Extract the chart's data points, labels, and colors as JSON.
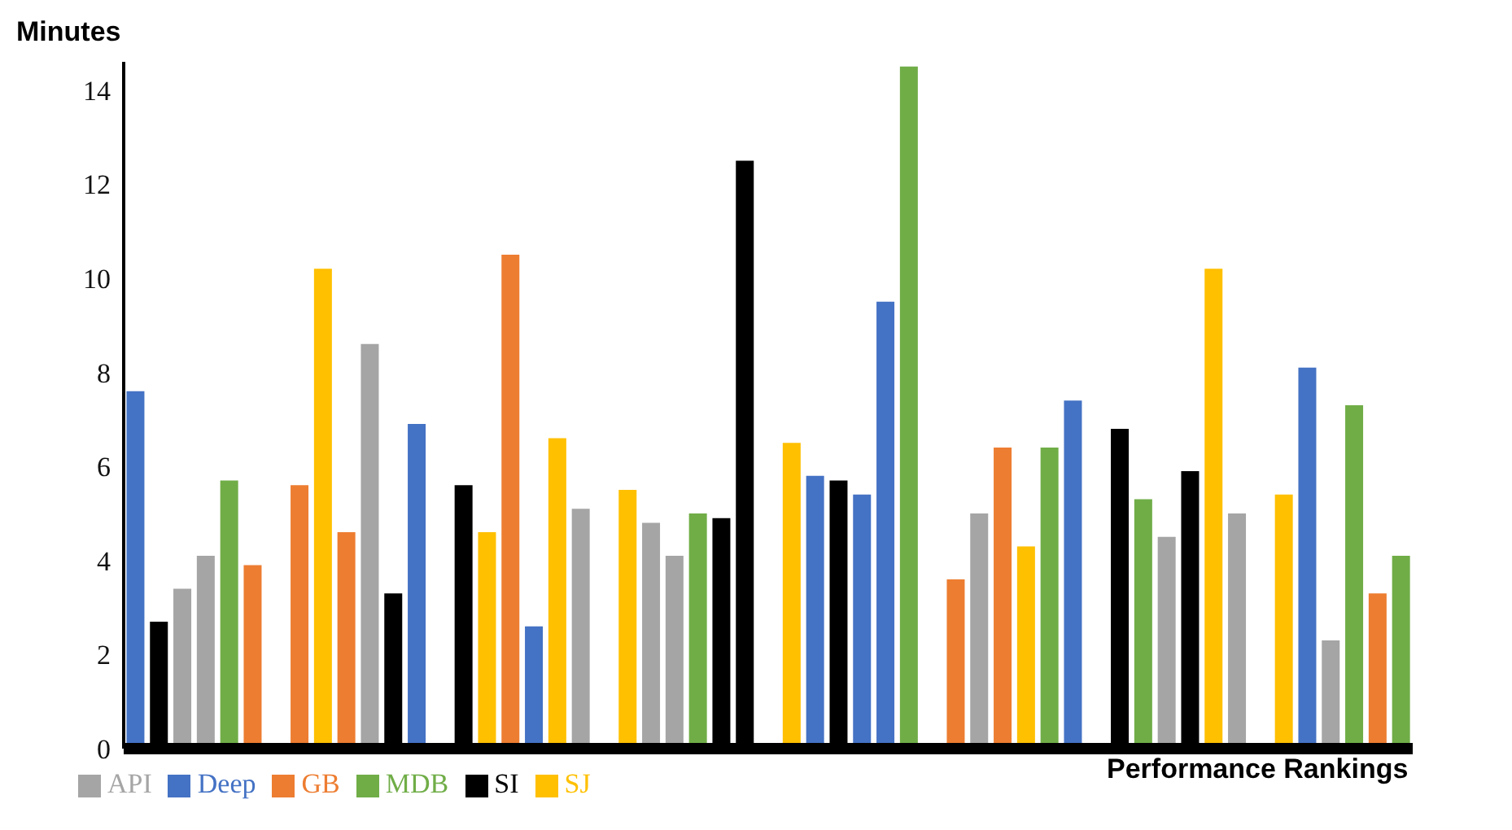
{
  "chart_data": {
    "type": "bar",
    "ylabel": "Minutes",
    "xlabel": "Performance Rankings",
    "stacked": true,
    "legend": "bottom",
    "grid": false,
    "ylim": [
      0,
      14.6
    ],
    "yticks": [
      0,
      2,
      4,
      6,
      8,
      10,
      12,
      14
    ],
    "categories": [
      null,
      null,
      null,
      null,
      null,
      null,
      null,
      null,
      null,
      null,
      null,
      null,
      null,
      null,
      null,
      null,
      null,
      null,
      null,
      null,
      null,
      null,
      null,
      null,
      null,
      null,
      null,
      null,
      null,
      null,
      null,
      null,
      null,
      null,
      null,
      null,
      null,
      null,
      null,
      null,
      null,
      null,
      null,
      null,
      null,
      null,
      null,
      null,
      null,
      null,
      null,
      null,
      null,
      null,
      null
    ],
    "series": [
      {
        "name": "Deep",
        "color": "#4472c4",
        "values": [
          7.6,
          null,
          null,
          null,
          null,
          null,
          null,
          null,
          null,
          null,
          null,
          null,
          6.9,
          null,
          null,
          null,
          null,
          2.6,
          null,
          null,
          null,
          null,
          null,
          null,
          null,
          null,
          null,
          null,
          null,
          5.8,
          null,
          5.4,
          9.5,
          null,
          null,
          null,
          null,
          null,
          null,
          null,
          7.4,
          null,
          null,
          null,
          null,
          null,
          null,
          null,
          null,
          null,
          8.1,
          null,
          null,
          null,
          null
        ]
      },
      {
        "name": "GB",
        "color": "#ed7d31",
        "values": [
          null,
          null,
          null,
          null,
          null,
          3.9,
          null,
          5.6,
          null,
          4.6,
          null,
          null,
          null,
          null,
          null,
          null,
          10.5,
          null,
          null,
          null,
          null,
          null,
          null,
          null,
          null,
          null,
          null,
          null,
          null,
          null,
          null,
          null,
          null,
          null,
          null,
          3.6,
          null,
          6.4,
          null,
          null,
          null,
          null,
          null,
          null,
          null,
          null,
          null,
          null,
          null,
          null,
          null,
          null,
          null,
          3.3,
          null
        ]
      },
      {
        "name": "SI",
        "color": "#000000",
        "values": [
          null,
          2.7,
          null,
          null,
          null,
          null,
          null,
          null,
          null,
          null,
          null,
          3.3,
          null,
          null,
          5.6,
          null,
          null,
          null,
          null,
          null,
          null,
          null,
          null,
          null,
          null,
          4.9,
          12.5,
          null,
          null,
          null,
          5.7,
          null,
          null,
          null,
          null,
          null,
          null,
          null,
          null,
          null,
          null,
          null,
          6.8,
          null,
          null,
          5.9,
          null,
          null,
          null,
          null,
          null,
          null,
          null,
          null,
          null
        ]
      },
      {
        "name": "API",
        "color": "#a5a5a5",
        "values": [
          null,
          null,
          3.4,
          4.1,
          null,
          null,
          null,
          null,
          null,
          null,
          8.6,
          null,
          null,
          null,
          null,
          null,
          null,
          null,
          null,
          5.1,
          null,
          null,
          4.8,
          4.1,
          null,
          null,
          null,
          null,
          null,
          null,
          null,
          null,
          null,
          null,
          null,
          null,
          5.0,
          null,
          null,
          null,
          null,
          null,
          null,
          null,
          4.5,
          null,
          null,
          5.0,
          null,
          null,
          null,
          2.3,
          null,
          null,
          null
        ]
      },
      {
        "name": "SJ",
        "color": "#ffc000",
        "values": [
          null,
          null,
          null,
          null,
          null,
          null,
          null,
          null,
          10.2,
          null,
          null,
          null,
          null,
          null,
          null,
          4.6,
          null,
          null,
          6.6,
          null,
          null,
          5.5,
          null,
          null,
          null,
          null,
          null,
          null,
          6.5,
          null,
          null,
          null,
          null,
          null,
          null,
          null,
          null,
          null,
          4.3,
          null,
          null,
          null,
          null,
          null,
          null,
          null,
          10.2,
          null,
          null,
          5.4,
          null,
          null,
          null,
          null,
          null
        ]
      },
      {
        "name": "MDB",
        "color": "#70ad47",
        "values": [
          null,
          null,
          null,
          null,
          5.7,
          null,
          null,
          null,
          null,
          null,
          null,
          null,
          null,
          null,
          null,
          null,
          null,
          null,
          null,
          null,
          null,
          null,
          null,
          null,
          5.0,
          null,
          null,
          null,
          null,
          null,
          null,
          null,
          null,
          14.5,
          null,
          null,
          null,
          null,
          null,
          6.4,
          null,
          null,
          null,
          5.3,
          null,
          null,
          null,
          null,
          null,
          null,
          null,
          null,
          7.3,
          null,
          4.1
        ]
      }
    ]
  }
}
